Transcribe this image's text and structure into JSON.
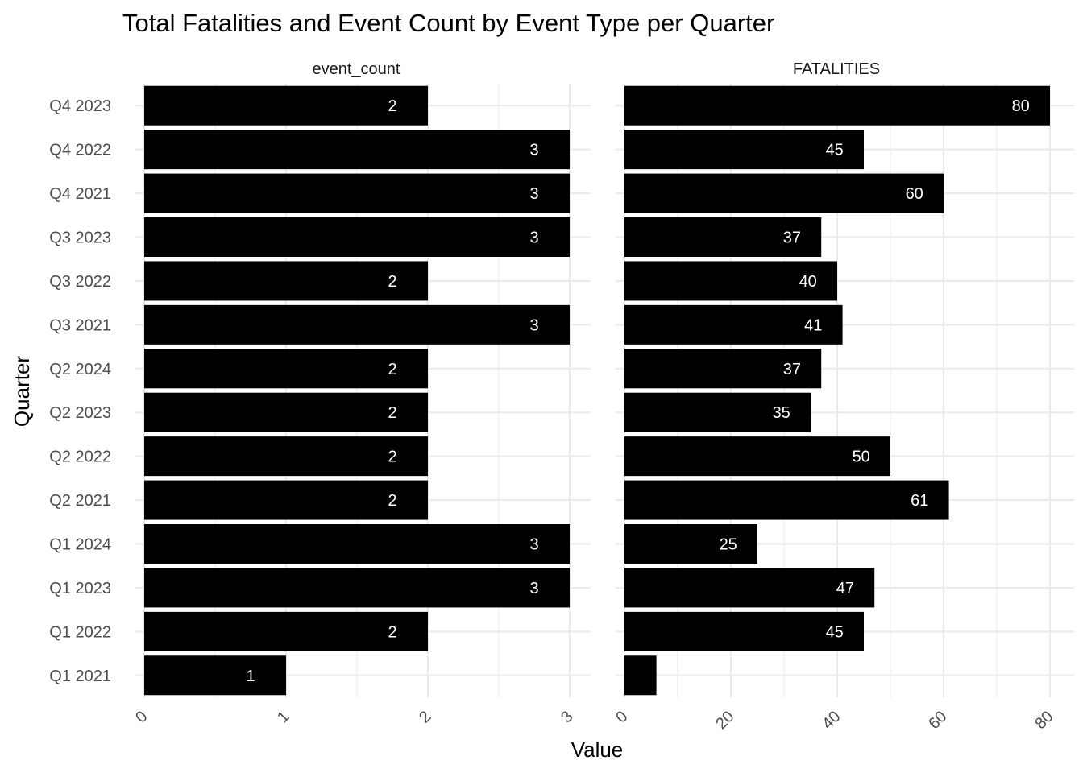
{
  "chart_data": {
    "type": "bar",
    "orientation": "horizontal",
    "title": "Total Fatalities and Event Count by Event Type per Quarter",
    "xlabel": "Value",
    "ylabel": "Quarter",
    "grid": true,
    "categories": [
      "Q1 2021",
      "Q1 2022",
      "Q1 2023",
      "Q1 2024",
      "Q2 2021",
      "Q2 2022",
      "Q2 2023",
      "Q2 2024",
      "Q3 2021",
      "Q3 2022",
      "Q3 2023",
      "Q4 2021",
      "Q4 2022",
      "Q4 2023"
    ],
    "bar_color": "#000000",
    "label_color": "#ffffff",
    "panels": [
      {
        "name": "event_count",
        "xlim": [
          0,
          3
        ],
        "ticks": [
          "0",
          "1",
          "2",
          "3"
        ],
        "values": [
          1,
          2,
          3,
          3,
          2,
          2,
          2,
          2,
          3,
          2,
          3,
          3,
          3,
          2
        ],
        "labels": [
          "1",
          "2",
          "3",
          "3",
          "2",
          "2",
          "2",
          "2",
          "3",
          "2",
          "3",
          "3",
          "3",
          "2"
        ]
      },
      {
        "name": "FATALITIES",
        "xlim": [
          0,
          80
        ],
        "ticks": [
          "0",
          "20",
          "40",
          "60",
          "80"
        ],
        "values": [
          6,
          45,
          47,
          25,
          61,
          50,
          35,
          37,
          41,
          40,
          37,
          60,
          45,
          80
        ],
        "labels": [
          "",
          "45",
          "47",
          "25",
          "61",
          "50",
          "35",
          "37",
          "41",
          "40",
          "37",
          "60",
          "45",
          "80"
        ]
      }
    ]
  }
}
